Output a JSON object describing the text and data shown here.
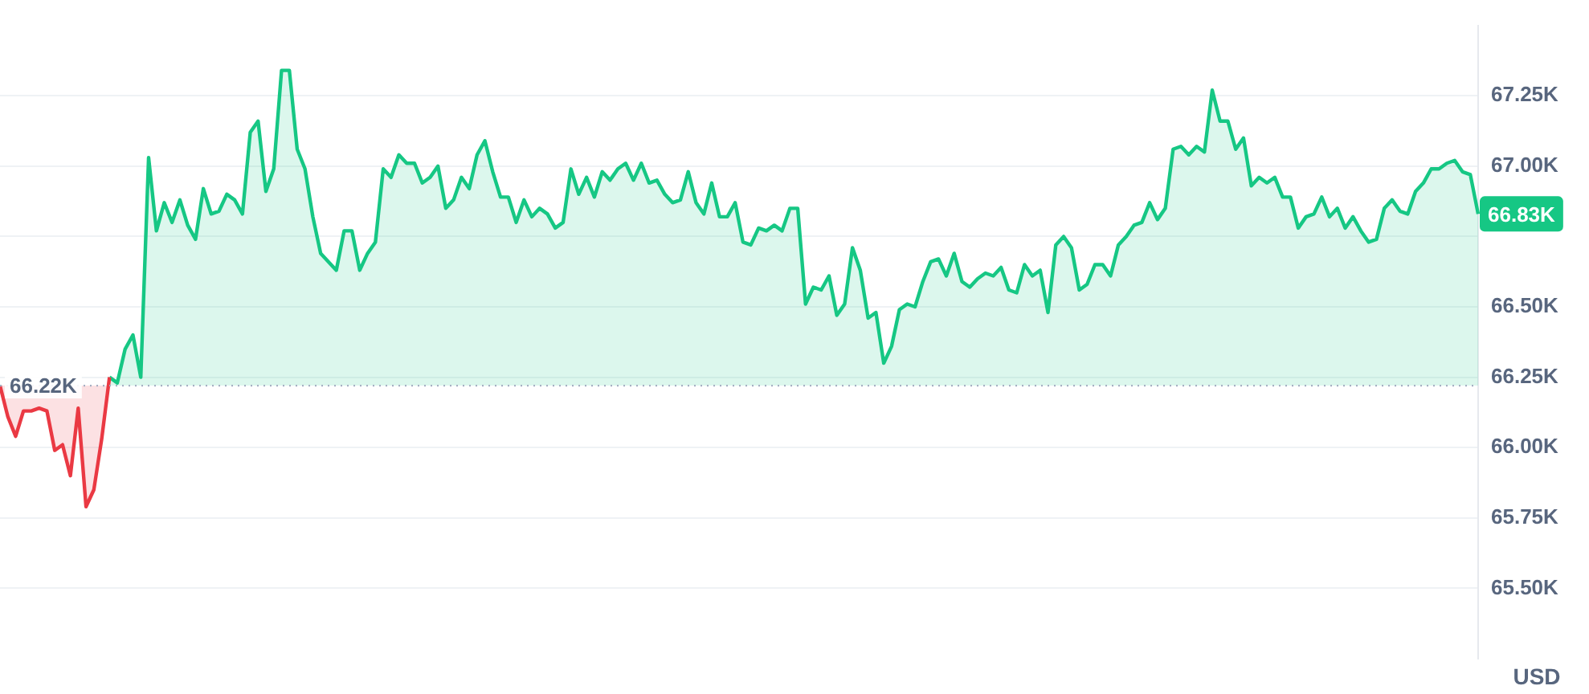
{
  "chart_data": {
    "type": "area",
    "ylabel": "USD",
    "categories": [
      null,
      null,
      null,
      null,
      null,
      null,
      null,
      null,
      null,
      null,
      null,
      null,
      null,
      null,
      null,
      null,
      null,
      null,
      null,
      null,
      null,
      null,
      null,
      null,
      null,
      null,
      null,
      null,
      null,
      null,
      null,
      null,
      null,
      null,
      null,
      null,
      null,
      null,
      null,
      null,
      null,
      null,
      null,
      null,
      null,
      null,
      null,
      null,
      null,
      null,
      null,
      null,
      null,
      null,
      null,
      null,
      null,
      null,
      null,
      null,
      null,
      null,
      null,
      null,
      null,
      null,
      null,
      null,
      null,
      null,
      null,
      null,
      null,
      null,
      null,
      null,
      null,
      null,
      null,
      null,
      null,
      null,
      null,
      null,
      null,
      null,
      null,
      null,
      null,
      null,
      null,
      null,
      null,
      null,
      null,
      null,
      null,
      null,
      null,
      null,
      null,
      null,
      null,
      null,
      null,
      null,
      null,
      null,
      null,
      null,
      null,
      null,
      null,
      null,
      null,
      null,
      null,
      null,
      null,
      null,
      null,
      null,
      null,
      null,
      null,
      null,
      null,
      null,
      null,
      null,
      null,
      null,
      null,
      null,
      null,
      null,
      null,
      null,
      null,
      null,
      null,
      null,
      null,
      null,
      null,
      null,
      null,
      null,
      null,
      null,
      null,
      null,
      null,
      null,
      null,
      null,
      null,
      null,
      null,
      null,
      null,
      null,
      null,
      null,
      null,
      null,
      null,
      null,
      null,
      null,
      null,
      null,
      null,
      null,
      null,
      null,
      null,
      null,
      null,
      null,
      null,
      null,
      null,
      null,
      null,
      null,
      null,
      null,
      null,
      null
    ],
    "series": [
      {
        "color": "#ea3943",
        "values": [
          66.22,
          66.11,
          66.04,
          66.13,
          66.13,
          66.14,
          66.13,
          65.99,
          66.01,
          65.9,
          66.14,
          65.79,
          65.85,
          66.03,
          66.25,
          null,
          null,
          null,
          null,
          null,
          null,
          null,
          null,
          null,
          null,
          null,
          null,
          null,
          null,
          null,
          null,
          null,
          null,
          null,
          null,
          null,
          null,
          null,
          null,
          null,
          null,
          null,
          null,
          null,
          null,
          null,
          null,
          null,
          null,
          null,
          null,
          null,
          null,
          null,
          null,
          null,
          null,
          null,
          null,
          null,
          null,
          null,
          null,
          null,
          null,
          null,
          null,
          null,
          null,
          null,
          null,
          null,
          null,
          null,
          null,
          null,
          null,
          null,
          null,
          null,
          null,
          null,
          null,
          null,
          null,
          null,
          null,
          null,
          null,
          null,
          null,
          null,
          null,
          null,
          null,
          null,
          null,
          null,
          null,
          null,
          null,
          null,
          null,
          null,
          null,
          null,
          null,
          null,
          null,
          null,
          null,
          null,
          null,
          null,
          null,
          null,
          null,
          null,
          null,
          null,
          null,
          null,
          null,
          null,
          null,
          null,
          null,
          null,
          null,
          null,
          null,
          null,
          null,
          null,
          null,
          null,
          null,
          null,
          null,
          null,
          null,
          null,
          null,
          null,
          null,
          null,
          null,
          null,
          null,
          null,
          null,
          null,
          null,
          null,
          null,
          null,
          null,
          null,
          null,
          null,
          null,
          null,
          null,
          null,
          null,
          null,
          null,
          null,
          null,
          null,
          null,
          null,
          null,
          null,
          null,
          null,
          null,
          null,
          null,
          null,
          null,
          null,
          null,
          null,
          null,
          null,
          null,
          null,
          null,
          null
        ]
      },
      {
        "color": "#16c784",
        "values": [
          null,
          null,
          null,
          null,
          null,
          null,
          null,
          null,
          null,
          null,
          null,
          null,
          null,
          null,
          66.25,
          66.23,
          66.35,
          66.4,
          66.25,
          67.03,
          66.77,
          66.87,
          66.8,
          66.88,
          66.79,
          66.74,
          66.92,
          66.83,
          66.84,
          66.9,
          66.88,
          66.83,
          67.12,
          67.16,
          66.91,
          66.99,
          67.34,
          67.34,
          67.06,
          66.99,
          66.82,
          66.69,
          66.66,
          66.63,
          66.77,
          66.77,
          66.63,
          66.69,
          66.73,
          66.99,
          66.96,
          67.04,
          67.01,
          67.01,
          66.94,
          66.96,
          67.0,
          66.85,
          66.88,
          66.96,
          66.92,
          67.04,
          67.09,
          66.98,
          66.89,
          66.89,
          66.8,
          66.88,
          66.82,
          66.85,
          66.83,
          66.78,
          66.8,
          66.99,
          66.9,
          66.96,
          66.89,
          66.98,
          66.95,
          66.99,
          67.01,
          66.95,
          67.01,
          66.94,
          66.95,
          66.9,
          66.87,
          66.88,
          66.98,
          66.87,
          66.83,
          66.94,
          66.82,
          66.82,
          66.87,
          66.73,
          66.72,
          66.78,
          66.77,
          66.79,
          66.77,
          66.85,
          66.85,
          66.51,
          66.57,
          66.56,
          66.61,
          66.47,
          66.51,
          66.71,
          66.63,
          66.46,
          66.48,
          66.3,
          66.36,
          66.49,
          66.51,
          66.5,
          66.59,
          66.66,
          66.67,
          66.61,
          66.69,
          66.59,
          66.57,
          66.6,
          66.62,
          66.61,
          66.64,
          66.56,
          66.55,
          66.65,
          66.61,
          66.63,
          66.48,
          66.72,
          66.75,
          66.71,
          66.56,
          66.58,
          66.65,
          66.65,
          66.61,
          66.72,
          66.75,
          66.79,
          66.8,
          66.87,
          66.81,
          66.85,
          67.06,
          67.07,
          67.04,
          67.07,
          67.05,
          67.27,
          67.16,
          67.16,
          67.06,
          67.1,
          66.93,
          66.96,
          66.94,
          66.96,
          66.89,
          66.89,
          66.78,
          66.82,
          66.83,
          66.89,
          66.82,
          66.85,
          66.78,
          66.82,
          66.77,
          66.73,
          66.74,
          66.85,
          66.88,
          66.84,
          66.83,
          66.91,
          66.94,
          66.99,
          66.99,
          67.01,
          67.02,
          66.98,
          66.97,
          66.83
        ]
      }
    ],
    "ylim": [
      65.25,
      67.5
    ],
    "yticks": [
      {
        "value": 65.5,
        "label": "65.50K"
      },
      {
        "value": 65.75,
        "label": "65.75K"
      },
      {
        "value": 66,
        "label": "66.00K"
      },
      {
        "value": 66.25,
        "label": "66.25K"
      },
      {
        "value": 66.5,
        "label": "66.50K"
      },
      {
        "value": 66.75,
        "label": null
      },
      {
        "value": 67,
        "label": "67.00K"
      },
      {
        "value": 67.25,
        "label": "67.25K"
      }
    ],
    "ref_lines": [
      {
        "axis": "y",
        "value": 66.22,
        "label": "66.22K",
        "line_style": "dotted",
        "color": "#a6b0c3"
      }
    ],
    "annotations": [
      "66.83K"
    ],
    "grid": "y",
    "legend": false,
    "marker": "none",
    "line_style": "solid"
  }
}
